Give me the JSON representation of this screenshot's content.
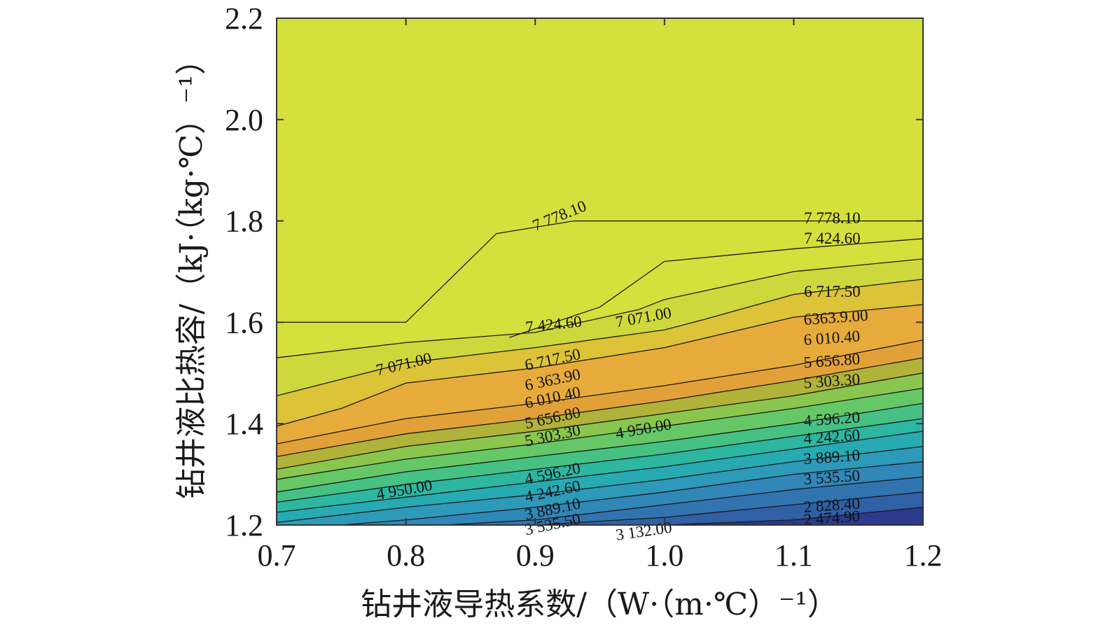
{
  "chart_data": {
    "type": "contour",
    "xlabel": "钻井液导热系数/（W·（m·℃）⁻¹）",
    "ylabel": "钻井液比热容/（kJ·（kg·℃）⁻¹）",
    "xlim": [
      0.7,
      1.2
    ],
    "ylim": [
      1.2,
      2.2
    ],
    "x_ticks": [
      "0.7",
      "0.8",
      "0.9",
      "1.0",
      "1.1",
      "1.2"
    ],
    "y_ticks": [
      "1.2",
      "1.4",
      "1.6",
      "1.8",
      "2.0",
      "2.2"
    ],
    "levels": [
      2474.9,
      2828.4,
      3132.0,
      3535.5,
      3889.1,
      4242.6,
      4596.2,
      4950.0,
      5303.3,
      5656.8,
      6010.4,
      6363.9,
      6717.5,
      7071.0,
      7424.6,
      7778.1
    ],
    "fill_colors": [
      "#2b3a8c",
      "#2e4c9a",
      "#3060a6",
      "#3274b0",
      "#3187b8",
      "#2d9aba",
      "#27aab2",
      "#2db7a1",
      "#45c184",
      "#66c766",
      "#8ac64e",
      "#b0b23a",
      "#e2a138",
      "#e6ab3a",
      "#dcc338",
      "#cdd83c",
      "#d4e03c"
    ],
    "contours": [
      {
        "level": 2474.9,
        "points": [
          [
            1.0,
            1.2
          ],
          [
            1.1,
            1.21
          ],
          [
            1.2,
            1.235
          ]
        ]
      },
      {
        "level": 2828.4,
        "points": [
          [
            0.9,
            1.2
          ],
          [
            1.0,
            1.215
          ],
          [
            1.1,
            1.24
          ],
          [
            1.2,
            1.265
          ]
        ]
      },
      {
        "level": 3132.0,
        "points": [
          [
            0.83,
            1.2
          ],
          [
            0.9,
            1.21
          ],
          [
            1.0,
            1.24
          ],
          [
            1.1,
            1.27
          ],
          [
            1.2,
            1.295
          ]
        ]
      },
      {
        "level": 3535.5,
        "points": [
          [
            0.75,
            1.2
          ],
          [
            0.8,
            1.21
          ],
          [
            0.9,
            1.235
          ],
          [
            1.0,
            1.265
          ],
          [
            1.1,
            1.3
          ],
          [
            1.2,
            1.325
          ]
        ]
      },
      {
        "level": 3889.1,
        "points": [
          [
            0.7,
            1.205
          ],
          [
            0.8,
            1.235
          ],
          [
            0.9,
            1.26
          ],
          [
            1.0,
            1.29
          ],
          [
            1.1,
            1.325
          ],
          [
            1.2,
            1.355
          ]
        ]
      },
      {
        "level": 4242.6,
        "points": [
          [
            0.7,
            1.225
          ],
          [
            0.8,
            1.255
          ],
          [
            0.9,
            1.285
          ],
          [
            1.0,
            1.315
          ],
          [
            1.1,
            1.35
          ],
          [
            1.2,
            1.385
          ]
        ]
      },
      {
        "level": 4596.2,
        "points": [
          [
            0.7,
            1.245
          ],
          [
            0.8,
            1.28
          ],
          [
            0.9,
            1.31
          ],
          [
            1.0,
            1.34
          ],
          [
            1.1,
            1.375
          ],
          [
            1.2,
            1.41
          ]
        ]
      },
      {
        "level": 4950.0,
        "points": [
          [
            0.7,
            1.265
          ],
          [
            0.8,
            1.305
          ],
          [
            0.9,
            1.335
          ],
          [
            1.0,
            1.365
          ],
          [
            1.1,
            1.4
          ],
          [
            1.2,
            1.44
          ]
        ]
      },
      {
        "level": 5303.3,
        "points": [
          [
            0.7,
            1.29
          ],
          [
            0.8,
            1.33
          ],
          [
            0.9,
            1.36
          ],
          [
            1.0,
            1.395
          ],
          [
            1.1,
            1.43
          ],
          [
            1.2,
            1.47
          ]
        ]
      },
      {
        "level": 5656.8,
        "points": [
          [
            0.7,
            1.31
          ],
          [
            0.8,
            1.355
          ],
          [
            0.9,
            1.385
          ],
          [
            1.0,
            1.42
          ],
          [
            1.1,
            1.455
          ],
          [
            1.2,
            1.5
          ]
        ]
      },
      {
        "level": 6010.4,
        "points": [
          [
            0.7,
            1.335
          ],
          [
            0.8,
            1.38
          ],
          [
            0.9,
            1.41
          ],
          [
            1.0,
            1.445
          ],
          [
            1.1,
            1.485
          ],
          [
            1.2,
            1.53
          ]
        ]
      },
      {
        "level": 6363.9,
        "points": [
          [
            0.7,
            1.36
          ],
          [
            0.8,
            1.41
          ],
          [
            0.9,
            1.44
          ],
          [
            1.0,
            1.475
          ],
          [
            1.1,
            1.515
          ],
          [
            1.2,
            1.565
          ]
        ]
      },
      {
        "level": 6717.5,
        "points": [
          [
            0.7,
            1.395
          ],
          [
            0.75,
            1.43
          ],
          [
            0.8,
            1.48
          ],
          [
            0.9,
            1.51
          ],
          [
            1.0,
            1.55
          ],
          [
            1.1,
            1.61
          ],
          [
            1.2,
            1.635
          ]
        ]
      },
      {
        "level": 7071.0,
        "points": [
          [
            0.7,
            1.455
          ],
          [
            0.8,
            1.52
          ],
          [
            0.9,
            1.55
          ],
          [
            1.0,
            1.585
          ],
          [
            1.03,
            1.605
          ],
          [
            1.1,
            1.655
          ],
          [
            1.2,
            1.685
          ]
        ]
      },
      {
        "level": 7424.6,
        "points": [
          [
            0.7,
            1.53
          ],
          [
            0.8,
            1.56
          ],
          [
            0.9,
            1.58
          ],
          [
            0.98,
            1.625
          ],
          [
            1.0,
            1.645
          ],
          [
            1.1,
            1.7
          ],
          [
            1.2,
            1.725
          ]
        ]
      },
      {
        "level": 7778.1,
        "points": [
          [
            0.7,
            1.6
          ],
          [
            0.8,
            1.6
          ],
          [
            0.87,
            1.775
          ],
          [
            0.93,
            1.8
          ],
          [
            1.2,
            1.8
          ]
        ],
        "upper_branch": true
      },
      {
        "level": 7778.1,
        "points": [
          [
            0.88,
            1.57
          ],
          [
            0.95,
            1.63
          ],
          [
            1.0,
            1.72
          ],
          [
            1.1,
            1.745
          ],
          [
            1.2,
            1.765
          ]
        ],
        "upper_branch": false
      }
    ],
    "contour_labels": [
      {
        "text": "7 778.10",
        "x": 0.9,
        "y": 1.78,
        "angle": -22
      },
      {
        "text": "7 778.10",
        "x": 1.108,
        "y": 1.795,
        "angle": 0
      },
      {
        "text": "7 424.60",
        "x": 1.108,
        "y": 1.755,
        "angle": 0
      },
      {
        "text": "7 424.60",
        "x": 0.893,
        "y": 1.58,
        "angle": -6
      },
      {
        "text": "7 071.00",
        "x": 0.963,
        "y": 1.59,
        "angle": -10
      },
      {
        "text": "7 071.00",
        "x": 0.778,
        "y": 1.495,
        "angle": -13
      },
      {
        "text": "6 717.50",
        "x": 1.108,
        "y": 1.65,
        "angle": 0
      },
      {
        "text": "6363.9.00",
        "x": 1.108,
        "y": 1.595,
        "angle": -4
      },
      {
        "text": "6 010.40",
        "x": 1.108,
        "y": 1.555,
        "angle": -4
      },
      {
        "text": "5 656.80",
        "x": 1.108,
        "y": 1.51,
        "angle": -4
      },
      {
        "text": "5 303.30",
        "x": 1.108,
        "y": 1.47,
        "angle": -4
      },
      {
        "text": "6 717.50",
        "x": 0.893,
        "y": 1.505,
        "angle": -12
      },
      {
        "text": "6 363.90",
        "x": 0.893,
        "y": 1.465,
        "angle": -12
      },
      {
        "text": "6 010.40",
        "x": 0.893,
        "y": 1.43,
        "angle": -12
      },
      {
        "text": "5 656.80",
        "x": 0.893,
        "y": 1.39,
        "angle": -12
      },
      {
        "text": "5 303.30",
        "x": 0.893,
        "y": 1.355,
        "angle": -12
      },
      {
        "text": "4 950.00",
        "x": 0.963,
        "y": 1.37,
        "angle": -10
      },
      {
        "text": "4 950.00",
        "x": 0.778,
        "y": 1.25,
        "angle": -10
      },
      {
        "text": "4 596.20",
        "x": 1.108,
        "y": 1.395,
        "angle": -4
      },
      {
        "text": "4 242.60",
        "x": 1.108,
        "y": 1.36,
        "angle": -4
      },
      {
        "text": "3 889.10",
        "x": 1.108,
        "y": 1.32,
        "angle": -4
      },
      {
        "text": "3 535.50",
        "x": 1.108,
        "y": 1.28,
        "angle": -4
      },
      {
        "text": "2 828.40",
        "x": 1.108,
        "y": 1.225,
        "angle": -4
      },
      {
        "text": "2 474.90",
        "x": 1.108,
        "y": 1.2,
        "angle": -4
      },
      {
        "text": "4 596.20",
        "x": 0.893,
        "y": 1.28,
        "angle": -12
      },
      {
        "text": "4 242.60",
        "x": 0.893,
        "y": 1.245,
        "angle": -12
      },
      {
        "text": "3 889.10",
        "x": 0.893,
        "y": 1.21,
        "angle": -12
      },
      {
        "text": "3 535.50",
        "x": 0.893,
        "y": 1.18,
        "angle": -12
      },
      {
        "text": "3 132.00",
        "x": 0.963,
        "y": 1.17,
        "angle": -8
      }
    ]
  }
}
